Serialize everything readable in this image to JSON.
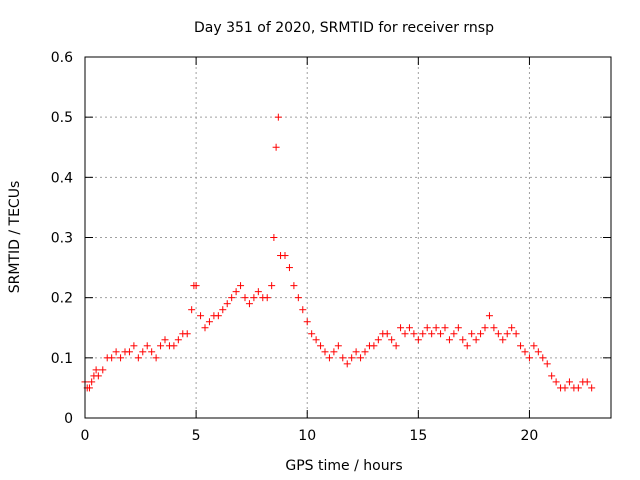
{
  "chart_data": {
    "type": "scatter",
    "title": "Day 351 of 2020, SRMTID for receiver rnsp",
    "xlabel": "GPS time / hours",
    "ylabel": "SRMTID / TECUs",
    "xlim": [
      0,
      23.67
    ],
    "ylim": [
      0,
      0.6
    ],
    "x_ticks": [
      0,
      5,
      10,
      15,
      20
    ],
    "x_tick_labels": [
      "0",
      "5",
      "10",
      "15",
      "20"
    ],
    "y_ticks": [
      0,
      0.1,
      0.2,
      0.3,
      0.4,
      0.5,
      0.6
    ],
    "y_tick_labels": [
      "0",
      "0.1",
      "0.2",
      "0.3",
      "0.4",
      "0.5",
      "0.6"
    ],
    "grid": true,
    "marker": "+",
    "color": "#ff0000",
    "series": [
      {
        "name": "SRMTID",
        "x": [
          0.0,
          0.1,
          0.2,
          0.3,
          0.4,
          0.5,
          0.6,
          0.8,
          1.0,
          1.2,
          1.4,
          1.6,
          1.8,
          2.0,
          2.2,
          2.4,
          2.6,
          2.8,
          3.0,
          3.2,
          3.4,
          3.6,
          3.8,
          4.0,
          4.2,
          4.4,
          4.6,
          4.8,
          4.9,
          5.0,
          5.2,
          5.4,
          5.6,
          5.8,
          6.0,
          6.2,
          6.4,
          6.6,
          6.8,
          7.0,
          7.2,
          7.4,
          7.6,
          7.8,
          8.0,
          8.2,
          8.4,
          8.5,
          8.6,
          8.7,
          8.8,
          9.0,
          9.2,
          9.4,
          9.6,
          9.8,
          10.0,
          10.2,
          10.4,
          10.6,
          10.8,
          11.0,
          11.2,
          11.4,
          11.6,
          11.8,
          12.0,
          12.2,
          12.4,
          12.6,
          12.8,
          13.0,
          13.2,
          13.4,
          13.6,
          13.8,
          14.0,
          14.2,
          14.4,
          14.6,
          14.8,
          15.0,
          15.2,
          15.4,
          15.6,
          15.8,
          16.0,
          16.2,
          16.4,
          16.6,
          16.8,
          17.0,
          17.2,
          17.4,
          17.6,
          17.8,
          18.0,
          18.2,
          18.4,
          18.6,
          18.8,
          19.0,
          19.2,
          19.4,
          19.6,
          19.8,
          20.0,
          20.2,
          20.4,
          20.6,
          20.8,
          21.0,
          21.2,
          21.4,
          21.6,
          21.8,
          22.0,
          22.2,
          22.4,
          22.6,
          22.8
        ],
        "y": [
          0.06,
          0.05,
          0.05,
          0.06,
          0.07,
          0.08,
          0.07,
          0.08,
          0.1,
          0.1,
          0.11,
          0.1,
          0.11,
          0.11,
          0.12,
          0.1,
          0.11,
          0.12,
          0.11,
          0.1,
          0.12,
          0.13,
          0.12,
          0.12,
          0.13,
          0.14,
          0.14,
          0.18,
          0.22,
          0.22,
          0.17,
          0.15,
          0.16,
          0.17,
          0.17,
          0.18,
          0.19,
          0.2,
          0.21,
          0.22,
          0.2,
          0.19,
          0.2,
          0.21,
          0.2,
          0.2,
          0.22,
          0.3,
          0.45,
          0.5,
          0.27,
          0.27,
          0.25,
          0.22,
          0.2,
          0.18,
          0.16,
          0.14,
          0.13,
          0.12,
          0.11,
          0.1,
          0.11,
          0.12,
          0.1,
          0.09,
          0.1,
          0.11,
          0.1,
          0.11,
          0.12,
          0.12,
          0.13,
          0.14,
          0.14,
          0.13,
          0.12,
          0.15,
          0.14,
          0.15,
          0.14,
          0.13,
          0.14,
          0.15,
          0.14,
          0.15,
          0.14,
          0.15,
          0.13,
          0.14,
          0.15,
          0.13,
          0.12,
          0.14,
          0.13,
          0.14,
          0.15,
          0.17,
          0.15,
          0.14,
          0.13,
          0.14,
          0.15,
          0.14,
          0.12,
          0.11,
          0.1,
          0.12,
          0.11,
          0.1,
          0.09,
          0.07,
          0.06,
          0.05,
          0.05,
          0.06,
          0.05,
          0.05,
          0.06,
          0.06,
          0.05
        ]
      }
    ]
  }
}
